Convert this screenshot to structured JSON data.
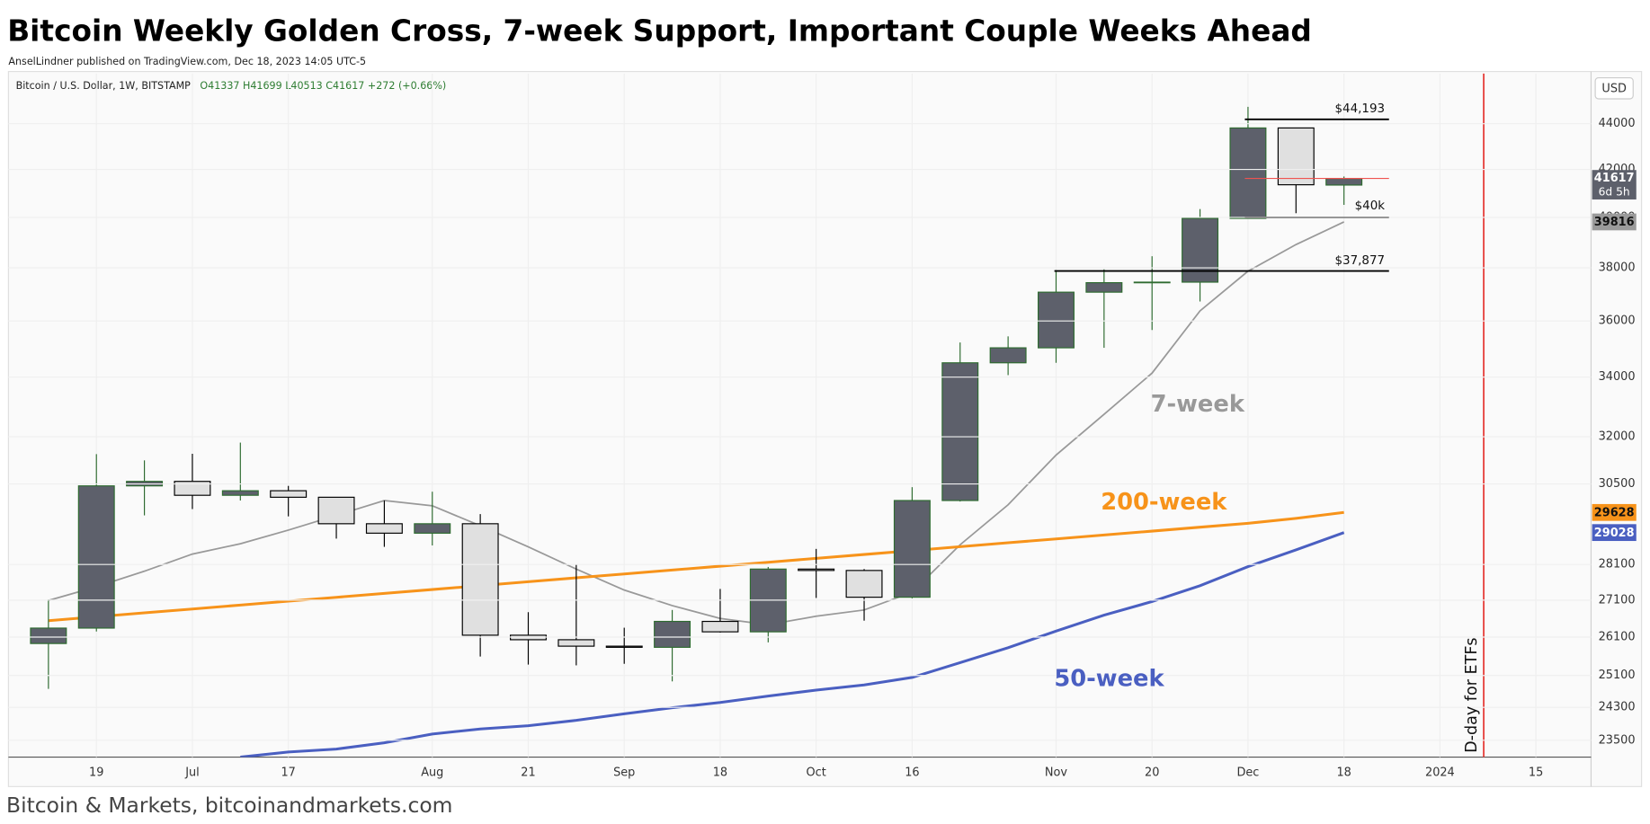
{
  "header": {
    "title": "Bitcoin Weekly Golden Cross, 7-week Support, Important Couple Weeks Ahead",
    "byline": "AnselLindner published on TradingView.com, Dec 18, 2023 14:05 UTC-5"
  },
  "chart_data": {
    "type": "candlestick",
    "legend": {
      "symbol": "Bitcoin / U.S. Dollar, 1W, BITSTAMP",
      "ohlc": "O41337 H41699 L40513 C41617 +272 (+0.66%)"
    },
    "currency": "USD",
    "categories": [
      null,
      "19",
      null,
      "Jul",
      null,
      "17",
      null,
      null,
      "Aug",
      null,
      "21",
      null,
      "Sep",
      null,
      "18",
      null,
      "Oct",
      null,
      "16",
      null,
      null,
      "Nov",
      null,
      "20",
      null,
      "Dec",
      null,
      "18",
      null,
      "2024",
      null,
      "15"
    ],
    "open": [
      25930,
      26340,
      30440,
      30580,
      30150,
      30290,
      30090,
      29290,
      29010,
      29290,
      26150,
      26030,
      25860,
      25830,
      26520,
      26240,
      27970,
      27930,
      27180,
      29990,
      34500,
      35030,
      37070,
      37430,
      37450,
      39960,
      43810,
      41337,
      null,
      null,
      null,
      null
    ],
    "high": [
      27120,
      31440,
      31240,
      31450,
      31810,
      30440,
      30090,
      29990,
      30260,
      29580,
      26770,
      28100,
      26350,
      26830,
      27410,
      28030,
      28550,
      27970,
      30400,
      35220,
      35440,
      37910,
      37940,
      38450,
      40340,
      44760,
      43810,
      41699,
      null,
      null,
      null,
      null
    ],
    "low": [
      24760,
      26250,
      29540,
      29730,
      29990,
      29510,
      28850,
      28610,
      28650,
      25590,
      25380,
      25360,
      25400,
      24950,
      26220,
      25960,
      27160,
      26540,
      27150,
      29960,
      34070,
      34500,
      35030,
      35670,
      36720,
      39960,
      40170,
      40513,
      null,
      null,
      null,
      null
    ],
    "close": [
      26340,
      30440,
      30580,
      30150,
      30290,
      30090,
      29290,
      29010,
      29290,
      26150,
      26030,
      25860,
      25830,
      26520,
      26240,
      27970,
      27930,
      27180,
      29990,
      34500,
      35030,
      37070,
      37430,
      37450,
      39960,
      43810,
      41350,
      41617,
      null,
      null,
      null,
      null
    ],
    "up_color": "#5d606b",
    "up_border_color": "#2e6b30",
    "down_color": "#e0e0e0",
    "down_border_color": "#000000",
    "series": [
      {
        "name": "7-week",
        "color": "#999999",
        "values": [
          27090,
          27470,
          27910,
          28400,
          28700,
          29100,
          29540,
          29990,
          29830,
          29230,
          28610,
          27970,
          27380,
          26950,
          26600,
          26430,
          26660,
          26830,
          27320,
          28670,
          29860,
          31410,
          32740,
          34140,
          36370,
          37870,
          38910,
          39816,
          null,
          null,
          null,
          null
        ]
      },
      {
        "name": "200-week",
        "color": "#f7931a",
        "values": [
          26540,
          26645,
          26751,
          26857,
          26964,
          27071,
          27178,
          27286,
          27394,
          27503,
          27612,
          27722,
          27832,
          27942,
          28053,
          28164,
          28276,
          28388,
          28501,
          28614,
          28728,
          28842,
          28956,
          29071,
          29187,
          29303,
          29450,
          29628,
          null,
          null,
          null,
          null
        ]
      },
      {
        "name": "50-week",
        "color": "#4a5fc1",
        "values": [
          null,
          null,
          null,
          null,
          23100,
          23220,
          23290,
          23440,
          23650,
          23770,
          23850,
          23980,
          24140,
          24290,
          24420,
          24580,
          24730,
          24860,
          25050,
          25430,
          25820,
          26260,
          26690,
          27060,
          27500,
          28040,
          28520,
          29028,
          null,
          null,
          null,
          null
        ]
      }
    ],
    "levels": [
      {
        "value": 44193,
        "label": "$44,193"
      },
      {
        "value": 40000,
        "label": "$40k"
      },
      {
        "value": 37877,
        "label": "$37,877"
      }
    ],
    "countdown": "6d 5h",
    "annotation": "D-day for ETFs",
    "log_scale": true,
    "grid": true,
    "ylim": [
      23100,
      46300
    ],
    "yticks": [
      23500,
      24300,
      25100,
      26100,
      27100,
      28100,
      30500,
      32000,
      34000,
      36000,
      38000,
      40000,
      42000,
      44000
    ]
  },
  "footer": "Bitcoin & Markets, bitcoinandmarkets.com"
}
